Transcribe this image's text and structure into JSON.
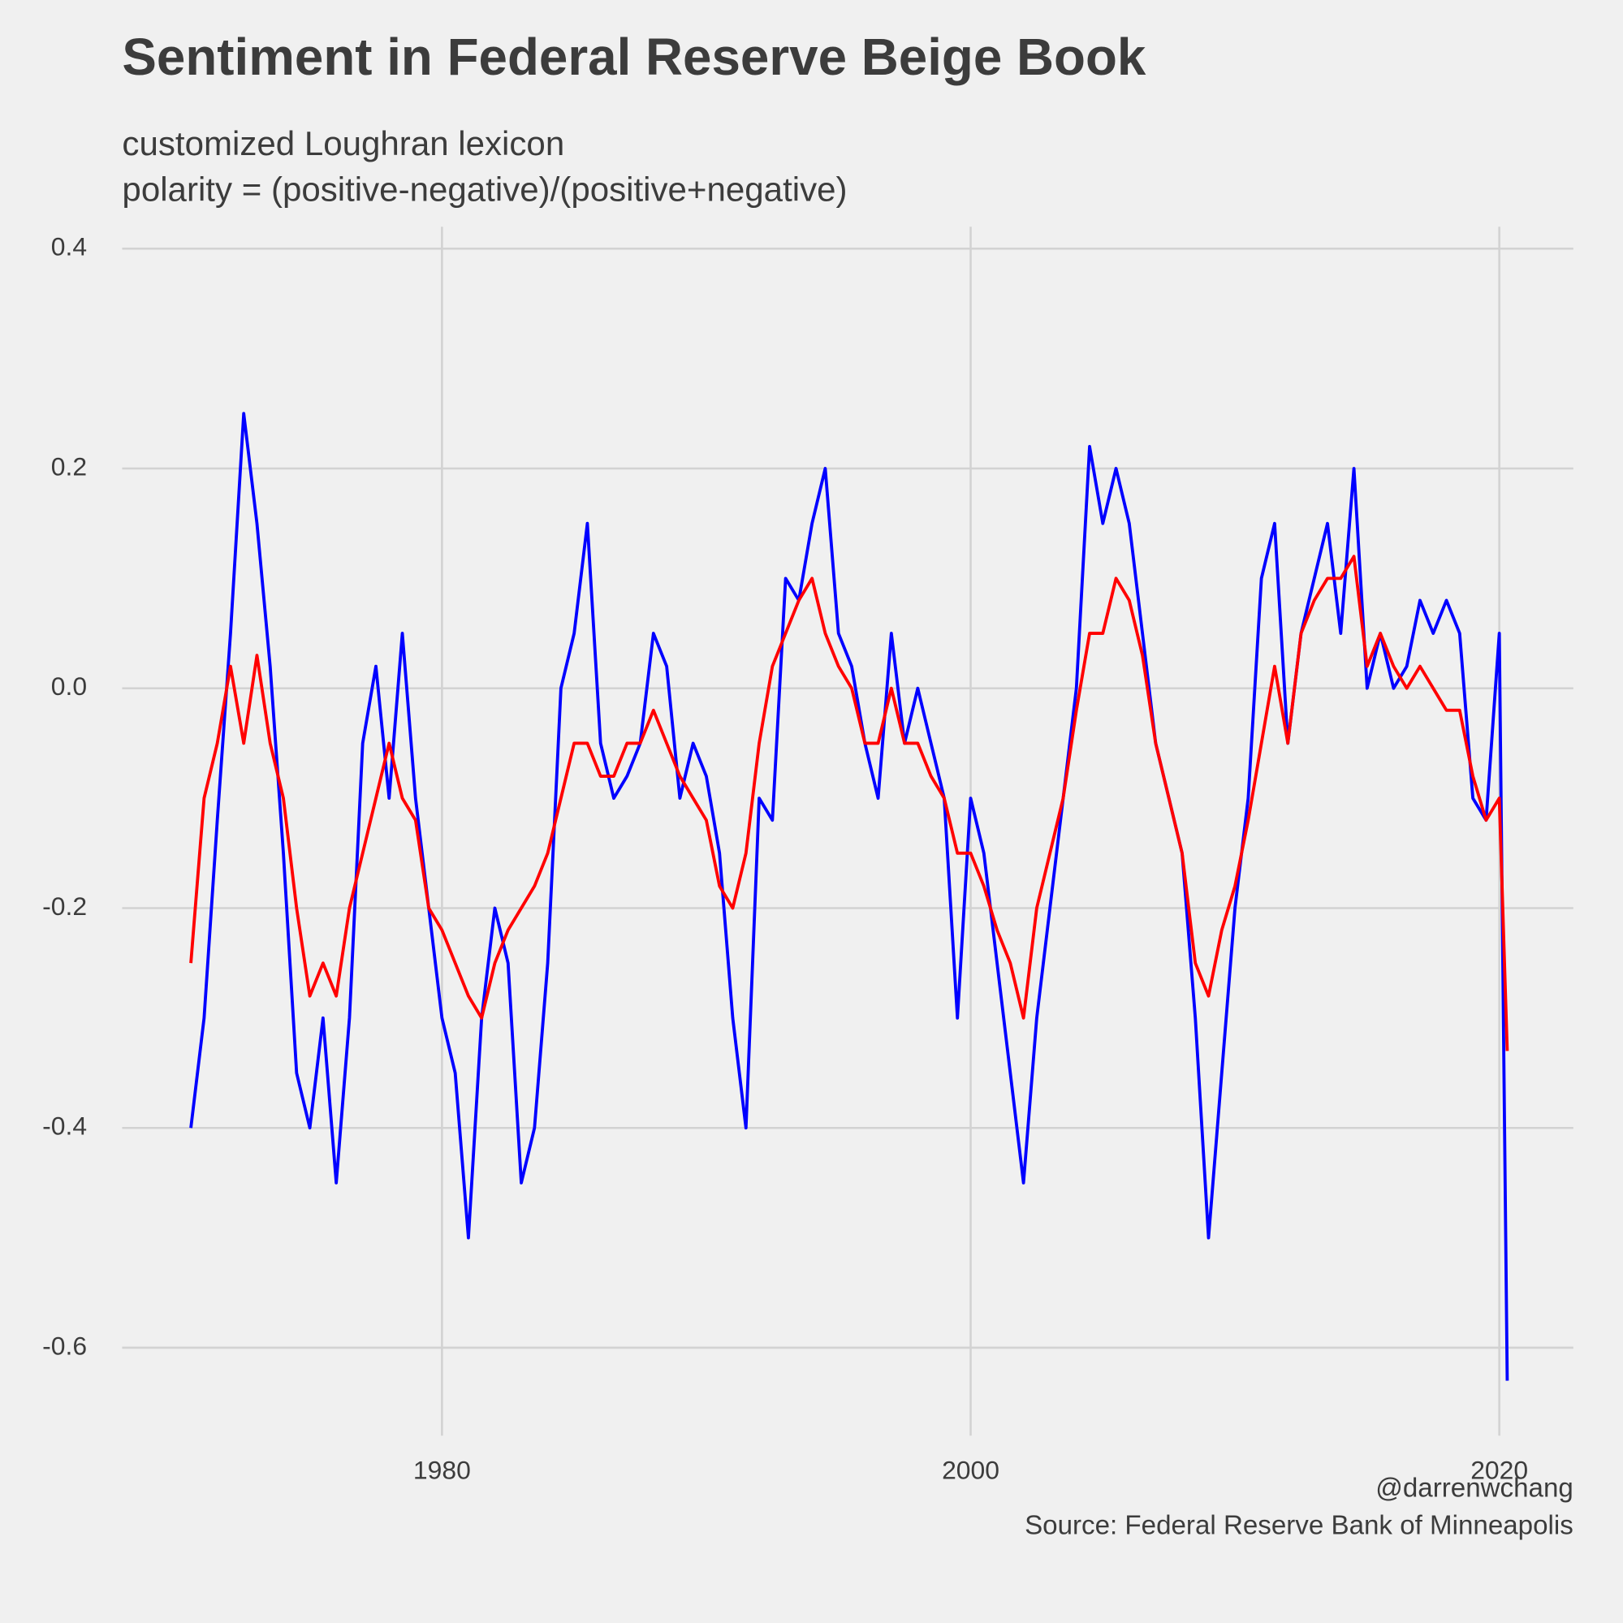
{
  "chart_data": {
    "type": "line",
    "title": "Sentiment in Federal Reserve Beige Book",
    "subtitle": [
      "customized Loughran lexicon",
      "polarity = (positive-negative)/(positive+negative)"
    ],
    "caption": [
      "@darrenwchang",
      "Source: Federal Reserve Bank of Minneapolis"
    ],
    "x": [
      1970.5,
      1971,
      1971.5,
      1972,
      1972.5,
      1973,
      1973.5,
      1974,
      1974.5,
      1975,
      1975.5,
      1976,
      1976.5,
      1977,
      1977.5,
      1978,
      1978.5,
      1979,
      1979.5,
      1980,
      1980.5,
      1981,
      1981.5,
      1982,
      1982.5,
      1983,
      1983.5,
      1984,
      1984.5,
      1985,
      1985.5,
      1986,
      1986.5,
      1987,
      1987.5,
      1988,
      1988.5,
      1989,
      1989.5,
      1990,
      1990.5,
      1991,
      1991.5,
      1992,
      1992.5,
      1993,
      1993.5,
      1994,
      1994.5,
      1995,
      1995.5,
      1996,
      1996.5,
      1997,
      1997.5,
      1998,
      1998.5,
      1999,
      1999.5,
      2000,
      2000.5,
      2001,
      2001.5,
      2002,
      2002.5,
      2003,
      2003.5,
      2004,
      2004.5,
      2005,
      2005.5,
      2006,
      2006.5,
      2007,
      2007.5,
      2008,
      2008.5,
      2009,
      2009.5,
      2010,
      2010.5,
      2011,
      2011.5,
      2012,
      2012.5,
      2013,
      2013.5,
      2014,
      2014.5,
      2015,
      2015.5,
      2016,
      2016.5,
      2017,
      2017.5,
      2018,
      2018.5,
      2019,
      2019.5,
      2020,
      2020.3
    ],
    "series": [
      {
        "color": "#0000ff",
        "values": [
          -0.4,
          -0.3,
          -0.12,
          0.05,
          0.25,
          0.15,
          0.02,
          -0.15,
          -0.35,
          -0.4,
          -0.3,
          -0.45,
          -0.3,
          -0.05,
          0.02,
          -0.1,
          0.05,
          -0.1,
          -0.2,
          -0.3,
          -0.35,
          -0.5,
          -0.3,
          -0.2,
          -0.25,
          -0.45,
          -0.4,
          -0.25,
          0.0,
          0.05,
          0.15,
          -0.05,
          -0.1,
          -0.08,
          -0.05,
          0.05,
          0.02,
          -0.1,
          -0.05,
          -0.08,
          -0.15,
          -0.3,
          -0.4,
          -0.1,
          -0.12,
          0.1,
          0.08,
          0.15,
          0.2,
          0.05,
          0.02,
          -0.05,
          -0.1,
          0.05,
          -0.05,
          0.0,
          -0.05,
          -0.1,
          -0.3,
          -0.1,
          -0.15,
          -0.25,
          -0.35,
          -0.45,
          -0.3,
          -0.2,
          -0.1,
          0.0,
          0.22,
          0.15,
          0.2,
          0.15,
          0.05,
          -0.05,
          -0.1,
          -0.15,
          -0.3,
          -0.5,
          -0.35,
          -0.2,
          -0.1,
          0.1,
          0.15,
          -0.05,
          0.05,
          0.1,
          0.15,
          0.05,
          0.2,
          0.0,
          0.05,
          0.0,
          0.02,
          0.08,
          0.05,
          0.08,
          0.05,
          -0.1,
          -0.12,
          0.05,
          -0.63
        ]
      },
      {
        "color": "#ff0000",
        "values": [
          -0.25,
          -0.1,
          -0.05,
          0.02,
          -0.05,
          0.03,
          -0.05,
          -0.1,
          -0.2,
          -0.28,
          -0.25,
          -0.28,
          -0.2,
          -0.15,
          -0.1,
          -0.05,
          -0.1,
          -0.12,
          -0.2,
          -0.22,
          -0.25,
          -0.28,
          -0.3,
          -0.25,
          -0.22,
          -0.2,
          -0.18,
          -0.15,
          -0.1,
          -0.05,
          -0.05,
          -0.08,
          -0.08,
          -0.05,
          -0.05,
          -0.02,
          -0.05,
          -0.08,
          -0.1,
          -0.12,
          -0.18,
          -0.2,
          -0.15,
          -0.05,
          0.02,
          0.05,
          0.08,
          0.1,
          0.05,
          0.02,
          0.0,
          -0.05,
          -0.05,
          0.0,
          -0.05,
          -0.05,
          -0.08,
          -0.1,
          -0.15,
          -0.15,
          -0.18,
          -0.22,
          -0.25,
          -0.3,
          -0.2,
          -0.15,
          -0.1,
          -0.02,
          0.05,
          0.05,
          0.1,
          0.08,
          0.03,
          -0.05,
          -0.1,
          -0.15,
          -0.25,
          -0.28,
          -0.22,
          -0.18,
          -0.12,
          -0.05,
          0.02,
          -0.05,
          0.05,
          0.08,
          0.1,
          0.1,
          0.12,
          0.02,
          0.05,
          0.02,
          0.0,
          0.02,
          0.0,
          -0.02,
          -0.02,
          -0.08,
          -0.12,
          -0.1,
          -0.33
        ]
      }
    ],
    "xlim": [
      1967.9,
      2022.8
    ],
    "xticks": [
      1980,
      2000,
      2020
    ],
    "ylim": [
      -0.68,
      0.42
    ],
    "yticks": [
      0.4,
      0.2,
      {
        "value": 0,
        "label": "0.0"
      },
      -0.2,
      -0.4,
      -0.6
    ],
    "grid": true
  }
}
